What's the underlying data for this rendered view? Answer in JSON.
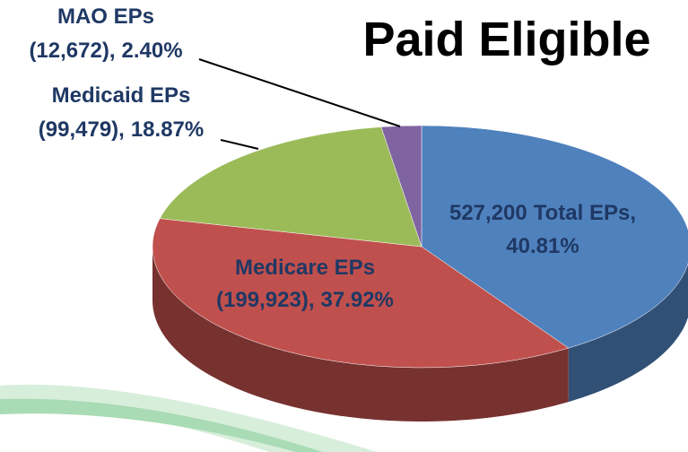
{
  "chart_data": {
    "type": "pie",
    "title": "Paid Eligible",
    "categories": [
      "Total EPs,",
      "Medicare EPs",
      "Medicaid EPs",
      "MAO EPs"
    ],
    "count_labels": [
      "527,200",
      "(199,923),",
      "(99,479),",
      "(12,672),"
    ],
    "values": [
      40.81,
      37.92,
      18.87,
      2.4
    ],
    "value_labels": [
      "40.81%",
      "37.92%",
      "18.87%",
      "2.40%"
    ],
    "colors": [
      "#4f81bd",
      "#c0504d",
      "#9bbb59",
      "#8064a2"
    ]
  }
}
